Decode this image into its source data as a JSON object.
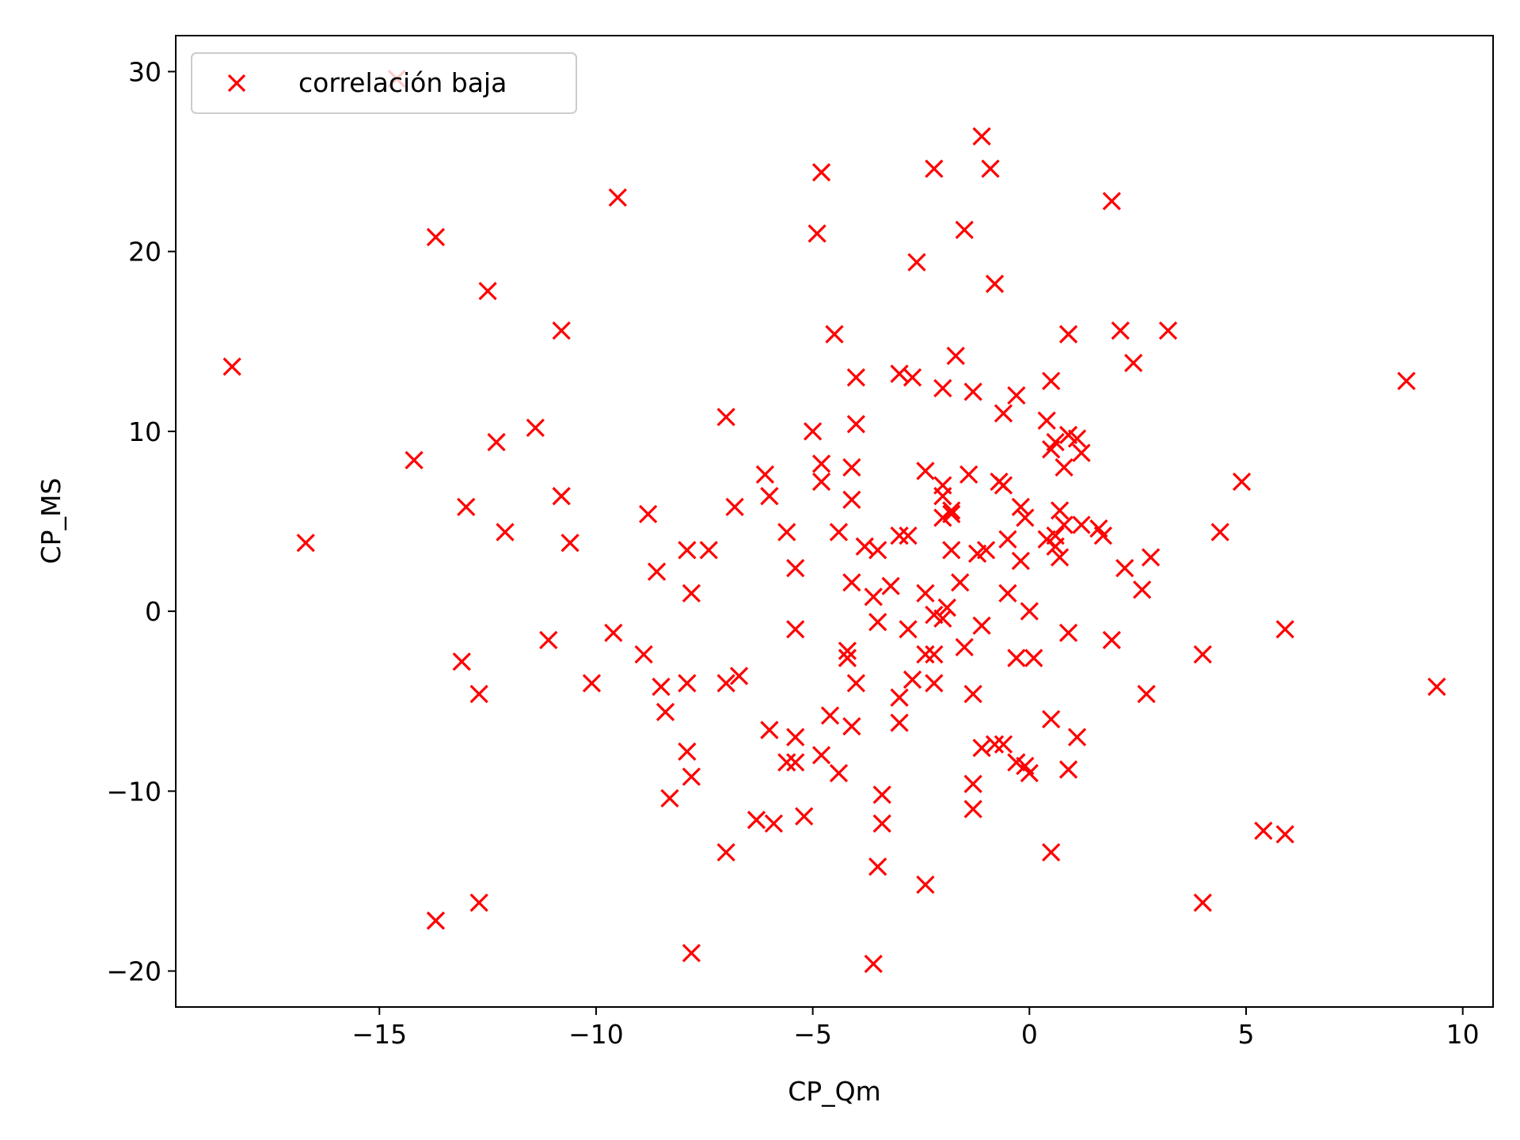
{
  "chart_data": {
    "type": "scatter",
    "xlabel": "CP_Qm",
    "ylabel": "CP_MS",
    "xlim": [
      -19.7,
      10.7
    ],
    "ylim": [
      -22.0,
      32.0
    ],
    "xticks": [
      -15,
      -10,
      -5,
      0,
      5,
      10
    ],
    "yticks": [
      -20,
      -10,
      0,
      10,
      20,
      30
    ],
    "xtick_labels": [
      "−15",
      "−10",
      "−5",
      "0",
      "5",
      "10"
    ],
    "ytick_labels": [
      "−20",
      "−10",
      "0",
      "10",
      "20",
      "30"
    ],
    "grid": false,
    "legend": {
      "position": "upper left"
    },
    "colors": {
      "marker": "#ff0000"
    },
    "marker": "x",
    "series": [
      {
        "name": "correlación baja",
        "points": [
          [
            -18.4,
            13.6
          ],
          [
            -16.7,
            3.8
          ],
          [
            -14.6,
            29.6
          ],
          [
            -14.2,
            8.4
          ],
          [
            -13.7,
            20.8
          ],
          [
            -13.7,
            -17.2
          ],
          [
            -13.0,
            5.8
          ],
          [
            -13.1,
            -2.8
          ],
          [
            -12.7,
            -4.6
          ],
          [
            -12.7,
            -16.2
          ],
          [
            -12.5,
            17.8
          ],
          [
            -12.3,
            9.4
          ],
          [
            -12.1,
            4.4
          ],
          [
            -11.4,
            10.2
          ],
          [
            -11.1,
            -1.6
          ],
          [
            -10.8,
            15.6
          ],
          [
            -10.8,
            6.4
          ],
          [
            -10.6,
            3.8
          ],
          [
            -10.1,
            -4.0
          ],
          [
            -9.6,
            -1.2
          ],
          [
            -9.5,
            23.0
          ],
          [
            -8.9,
            -2.4
          ],
          [
            -8.8,
            5.4
          ],
          [
            -8.6,
            2.2
          ],
          [
            -8.5,
            -4.2
          ],
          [
            -8.4,
            -5.6
          ],
          [
            -8.3,
            -10.4
          ],
          [
            -7.9,
            3.4
          ],
          [
            -7.9,
            -4.0
          ],
          [
            -7.9,
            -7.8
          ],
          [
            -7.8,
            1.0
          ],
          [
            -7.8,
            -9.2
          ],
          [
            -7.8,
            -19.0
          ],
          [
            -7.4,
            3.4
          ],
          [
            -7.0,
            10.8
          ],
          [
            -7.0,
            -4.0
          ],
          [
            -7.0,
            -13.4
          ],
          [
            -6.8,
            5.8
          ],
          [
            -6.7,
            -3.6
          ],
          [
            -6.3,
            -11.6
          ],
          [
            -6.1,
            7.6
          ],
          [
            -6.0,
            6.4
          ],
          [
            -6.0,
            -6.6
          ],
          [
            -5.9,
            -11.8
          ],
          [
            -5.6,
            4.4
          ],
          [
            -5.6,
            -8.4
          ],
          [
            -5.4,
            2.4
          ],
          [
            -5.4,
            -1.0
          ],
          [
            -5.4,
            -7.0
          ],
          [
            -5.4,
            -8.4
          ],
          [
            -5.2,
            -11.4
          ],
          [
            -5.0,
            10.0
          ],
          [
            -4.9,
            21.0
          ],
          [
            -4.8,
            24.4
          ],
          [
            -4.8,
            8.2
          ],
          [
            -4.8,
            7.2
          ],
          [
            -4.8,
            -8.0
          ],
          [
            -4.6,
            -5.8
          ],
          [
            -4.5,
            15.4
          ],
          [
            -4.4,
            4.4
          ],
          [
            -4.4,
            -9.0
          ],
          [
            -4.2,
            -2.2
          ],
          [
            -4.2,
            -2.6
          ],
          [
            -4.1,
            8.0
          ],
          [
            -4.1,
            6.2
          ],
          [
            -4.1,
            1.6
          ],
          [
            -4.1,
            -6.4
          ],
          [
            -4.0,
            13.0
          ],
          [
            -4.0,
            10.4
          ],
          [
            -4.0,
            -4.0
          ],
          [
            -3.8,
            3.6
          ],
          [
            -3.6,
            0.8
          ],
          [
            -3.5,
            3.4
          ],
          [
            -3.5,
            -0.6
          ],
          [
            -3.5,
            -14.2
          ],
          [
            -3.6,
            -19.6
          ],
          [
            -3.4,
            -10.2
          ],
          [
            -3.4,
            -11.8
          ],
          [
            -3.2,
            1.4
          ],
          [
            -3.0,
            13.2
          ],
          [
            -3.0,
            4.2
          ],
          [
            -3.0,
            -4.8
          ],
          [
            -3.0,
            -6.2
          ],
          [
            -2.8,
            4.2
          ],
          [
            -2.8,
            -1.0
          ],
          [
            -2.7,
            13.0
          ],
          [
            -2.7,
            -3.8
          ],
          [
            -2.6,
            19.4
          ],
          [
            -2.4,
            7.8
          ],
          [
            -2.4,
            1.0
          ],
          [
            -2.4,
            -2.4
          ],
          [
            -2.4,
            -15.2
          ],
          [
            -2.2,
            24.6
          ],
          [
            -2.2,
            -2.4
          ],
          [
            -2.2,
            -4.0
          ],
          [
            -2.2,
            -0.2
          ],
          [
            -2.0,
            12.4
          ],
          [
            -2.0,
            7.0
          ],
          [
            -2.0,
            6.4
          ],
          [
            -2.0,
            5.2
          ],
          [
            -2.0,
            -0.4
          ],
          [
            -1.9,
            0.2
          ],
          [
            -1.8,
            5.6
          ],
          [
            -1.8,
            5.4
          ],
          [
            -1.8,
            3.4
          ],
          [
            -1.7,
            14.2
          ],
          [
            -1.6,
            1.6
          ],
          [
            -1.5,
            21.2
          ],
          [
            -1.5,
            -2.0
          ],
          [
            -1.4,
            7.6
          ],
          [
            -1.3,
            12.2
          ],
          [
            -1.3,
            -4.6
          ],
          [
            -1.3,
            -9.6
          ],
          [
            -1.3,
            -11.0
          ],
          [
            -1.2,
            3.2
          ],
          [
            -1.1,
            26.4
          ],
          [
            -1.1,
            -0.8
          ],
          [
            -1.1,
            -7.6
          ],
          [
            -1.0,
            3.4
          ],
          [
            -0.9,
            24.6
          ],
          [
            -0.8,
            18.2
          ],
          [
            -0.8,
            -7.4
          ],
          [
            -0.7,
            7.2
          ],
          [
            -0.6,
            11.0
          ],
          [
            -0.6,
            7.0
          ],
          [
            -0.6,
            -7.4
          ],
          [
            -0.5,
            4.0
          ],
          [
            -0.5,
            1.0
          ],
          [
            -0.3,
            12.0
          ],
          [
            -0.3,
            -2.6
          ],
          [
            -0.3,
            -8.4
          ],
          [
            -0.2,
            5.8
          ],
          [
            -0.2,
            2.8
          ],
          [
            -0.1,
            5.2
          ],
          [
            -0.1,
            -8.6
          ],
          [
            0.0,
            0.0
          ],
          [
            0.0,
            -9.0
          ],
          [
            0.1,
            -2.6
          ],
          [
            0.4,
            10.6
          ],
          [
            0.4,
            4.0
          ],
          [
            0.5,
            12.8
          ],
          [
            0.5,
            9.0
          ],
          [
            0.5,
            -6.0
          ],
          [
            0.5,
            -13.4
          ],
          [
            0.6,
            9.4
          ],
          [
            0.6,
            4.2
          ],
          [
            0.6,
            3.6
          ],
          [
            0.7,
            5.6
          ],
          [
            0.7,
            3.0
          ],
          [
            0.8,
            8.0
          ],
          [
            0.8,
            4.8
          ],
          [
            0.9,
            9.8
          ],
          [
            0.9,
            15.4
          ],
          [
            0.9,
            -1.2
          ],
          [
            0.9,
            -8.8
          ],
          [
            1.1,
            9.6
          ],
          [
            1.1,
            -7.0
          ],
          [
            1.2,
            8.8
          ],
          [
            1.2,
            4.8
          ],
          [
            1.6,
            4.6
          ],
          [
            1.7,
            4.2
          ],
          [
            1.9,
            22.8
          ],
          [
            1.9,
            -1.6
          ],
          [
            2.1,
            15.6
          ],
          [
            2.2,
            2.4
          ],
          [
            2.4,
            13.8
          ],
          [
            2.6,
            1.2
          ],
          [
            2.7,
            -4.6
          ],
          [
            2.8,
            3.0
          ],
          [
            3.2,
            15.6
          ],
          [
            4.0,
            -2.4
          ],
          [
            4.0,
            -16.2
          ],
          [
            4.4,
            4.4
          ],
          [
            4.9,
            7.2
          ],
          [
            5.4,
            -12.2
          ],
          [
            5.9,
            -1.0
          ],
          [
            5.9,
            -12.4
          ],
          [
            8.7,
            12.8
          ],
          [
            9.4,
            -4.2
          ]
        ]
      }
    ]
  }
}
